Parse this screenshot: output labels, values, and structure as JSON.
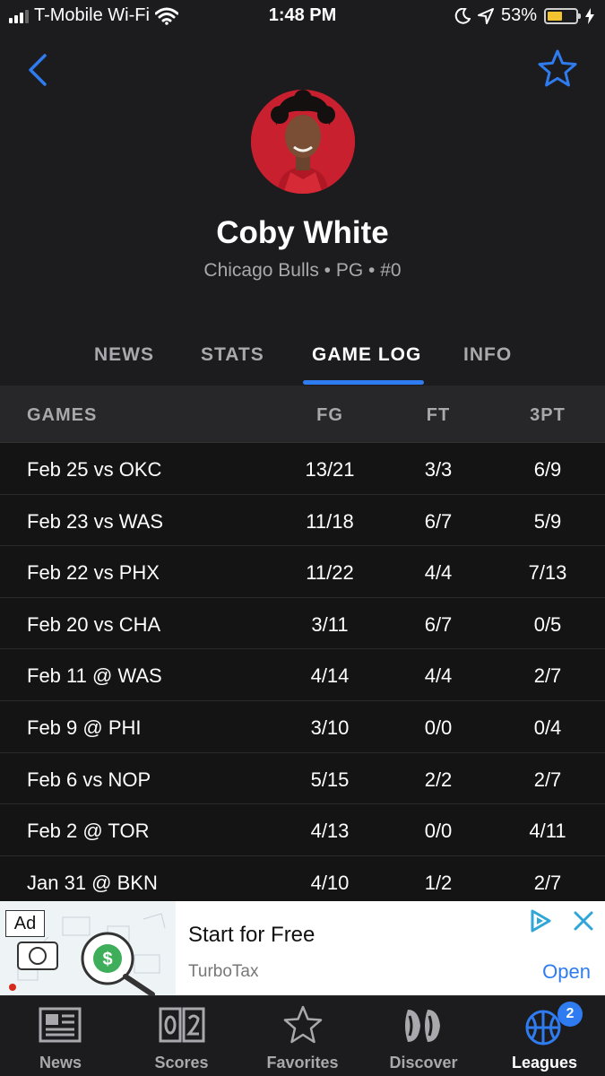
{
  "status_bar": {
    "carrier": "T-Mobile Wi-Fi",
    "time": "1:48 PM",
    "battery": "53%",
    "battery_level": 0.53
  },
  "player": {
    "name": "Coby White",
    "subtitle": "Chicago Bulls • PG • #0"
  },
  "tabs": [
    {
      "label": "NEWS",
      "active": false
    },
    {
      "label": "STATS",
      "active": false
    },
    {
      "label": "GAME LOG",
      "active": true
    },
    {
      "label": "INFO",
      "active": false
    }
  ],
  "table": {
    "headers": {
      "game": "GAMES",
      "fg": "FG",
      "ft": "FT",
      "tpt": "3PT"
    },
    "rows": [
      {
        "game": "Feb 25 vs OKC",
        "fg": "13/21",
        "ft": "3/3",
        "tpt": "6/9"
      },
      {
        "game": "Feb 23 vs WAS",
        "fg": "11/18",
        "ft": "6/7",
        "tpt": "5/9"
      },
      {
        "game": "Feb 22 vs PHX",
        "fg": "11/22",
        "ft": "4/4",
        "tpt": "7/13"
      },
      {
        "game": "Feb 20 vs CHA",
        "fg": "3/11",
        "ft": "6/7",
        "tpt": "0/5"
      },
      {
        "game": "Feb 11 @ WAS",
        "fg": "4/14",
        "ft": "4/4",
        "tpt": "2/7"
      },
      {
        "game": "Feb 9 @ PHI",
        "fg": "3/10",
        "ft": "0/0",
        "tpt": "0/4"
      },
      {
        "game": "Feb 6 vs NOP",
        "fg": "5/15",
        "ft": "2/2",
        "tpt": "2/7"
      },
      {
        "game": "Feb 2 @ TOR",
        "fg": "4/13",
        "ft": "0/0",
        "tpt": "4/11"
      },
      {
        "game": "Jan 31 @ BKN",
        "fg": "4/10",
        "ft": "1/2",
        "tpt": "2/7"
      }
    ]
  },
  "ad": {
    "badge": "Ad",
    "title": "Start for Free",
    "advertiser": "TurboTax",
    "cta": "Open"
  },
  "nav": [
    {
      "label": "News",
      "icon": "newspaper-icon",
      "active": false
    },
    {
      "label": "Scores",
      "icon": "scoreboard-icon",
      "active": false
    },
    {
      "label": "Favorites",
      "icon": "star-outline-icon",
      "active": false
    },
    {
      "label": "Discover",
      "icon": "discover-icon",
      "active": false
    },
    {
      "label": "Leagues",
      "icon": "basketball-icon",
      "active": true,
      "badge": "2"
    }
  ],
  "colors": {
    "accent": "#2f7bf0",
    "background": "#1c1c1e",
    "muted_text": "#a8a8ad"
  }
}
